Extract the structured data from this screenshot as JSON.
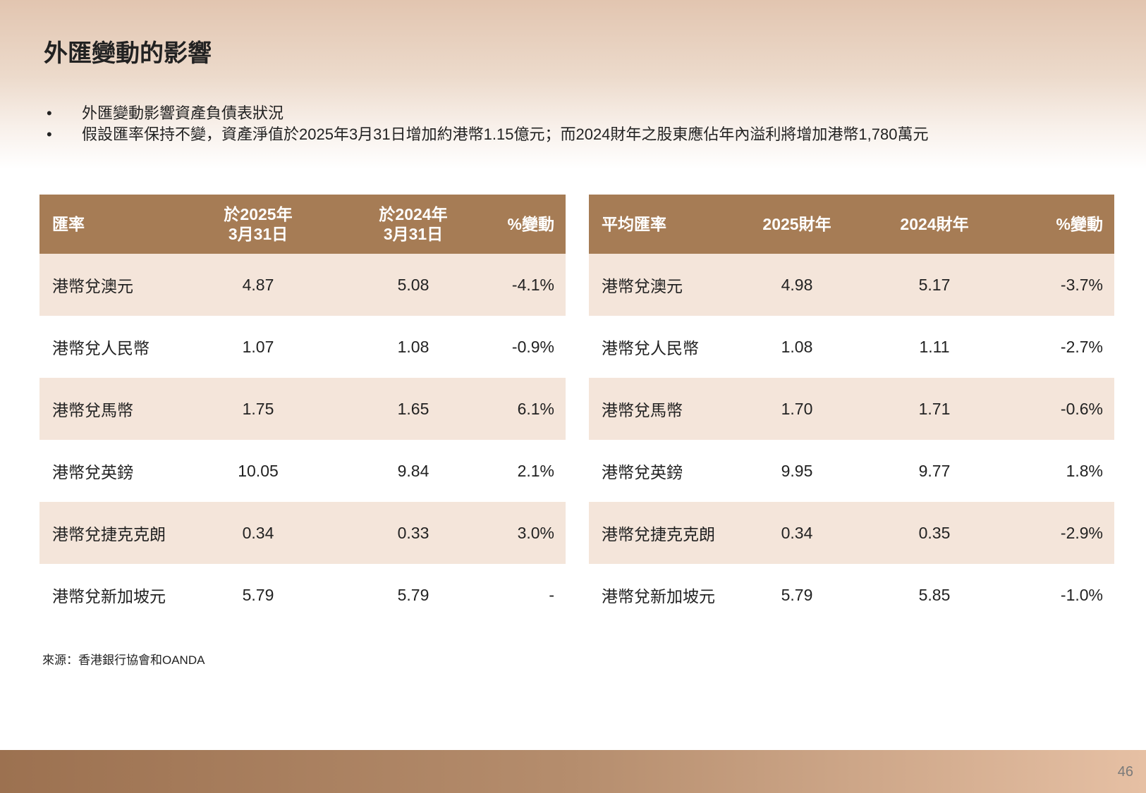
{
  "title": "外匯變動的影響",
  "bullets": [
    "外匯變動影響資產負債表狀況",
    "假設匯率保持不變，資產淨值於2025年3月31日增加約港幣1.15億元；而2024財年之股東應佔年內溢利將增加港幣1,780萬元"
  ],
  "left_table": {
    "headers": [
      "匯率",
      "於2025年\n3月31日",
      "於2024年\n3月31日",
      "%變動"
    ],
    "rows": [
      [
        "港幣兌澳元",
        "4.87",
        "5.08",
        "-4.1%"
      ],
      [
        "港幣兌人民幣",
        "1.07",
        "1.08",
        "-0.9%"
      ],
      [
        "港幣兌馬幣",
        "1.75",
        "1.65",
        "6.1%"
      ],
      [
        "港幣兌英鎊",
        "10.05",
        "9.84",
        "2.1%"
      ],
      [
        "港幣兌捷克克朗",
        "0.34",
        "0.33",
        "3.0%"
      ],
      [
        "港幣兌新加坡元",
        "5.79",
        "5.79",
        "-"
      ]
    ]
  },
  "right_table": {
    "headers": [
      "平均匯率",
      "2025財年",
      "2024財年",
      "%變動"
    ],
    "rows": [
      [
        "港幣兌澳元",
        "4.98",
        "5.17",
        "-3.7%"
      ],
      [
        "港幣兌人民幣",
        "1.08",
        "1.11",
        "-2.7%"
      ],
      [
        "港幣兌馬幣",
        "1.70",
        "1.71",
        "-0.6%"
      ],
      [
        "港幣兌英鎊",
        "9.95",
        "9.77",
        "1.8%"
      ],
      [
        "港幣兌捷克克朗",
        "0.34",
        "0.35",
        "-2.9%"
      ],
      [
        "港幣兌新加坡元",
        "5.79",
        "5.85",
        "-1.0%"
      ]
    ]
  },
  "source": "來源：香港銀行協會和OANDA",
  "page_number": "46",
  "colors": {
    "header": "#a67c55",
    "row_alt": "#f4e5da"
  }
}
